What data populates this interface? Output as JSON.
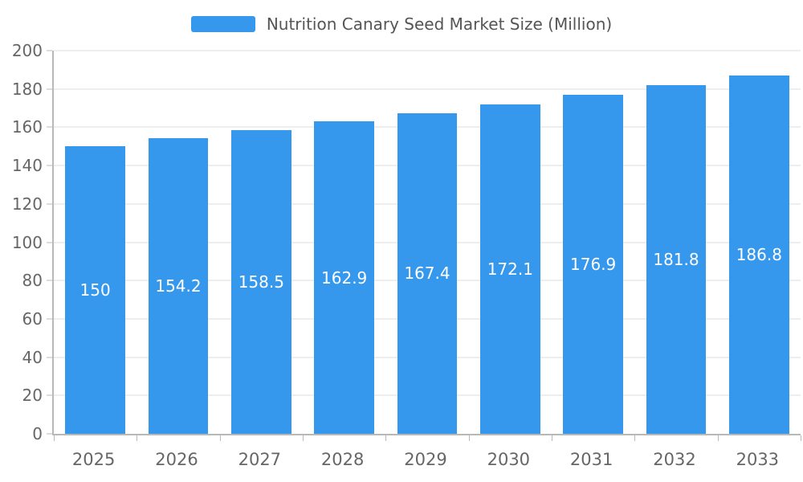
{
  "chart_data": {
    "type": "bar",
    "title": "Nutrition Canary Seed Market Size (Million)",
    "categories": [
      "2025",
      "2026",
      "2027",
      "2028",
      "2029",
      "2030",
      "2031",
      "2032",
      "2033"
    ],
    "values": [
      150,
      154.2,
      158.5,
      162.9,
      167.4,
      172.1,
      176.9,
      181.8,
      186.8
    ],
    "xlabel": "",
    "ylabel": "",
    "ylim": [
      0,
      200
    ],
    "yticks": [
      0,
      20,
      40,
      60,
      80,
      100,
      120,
      140,
      160,
      180,
      200
    ],
    "grid": true,
    "legend_position": "top",
    "colors": {
      "bar": "#3598EC",
      "bar_value_text": "#FFFFFF",
      "axis_text": "#666666",
      "gridline": "#DDDDDD",
      "axis_line": "#B8B8B8",
      "title_text": "#555555"
    }
  }
}
